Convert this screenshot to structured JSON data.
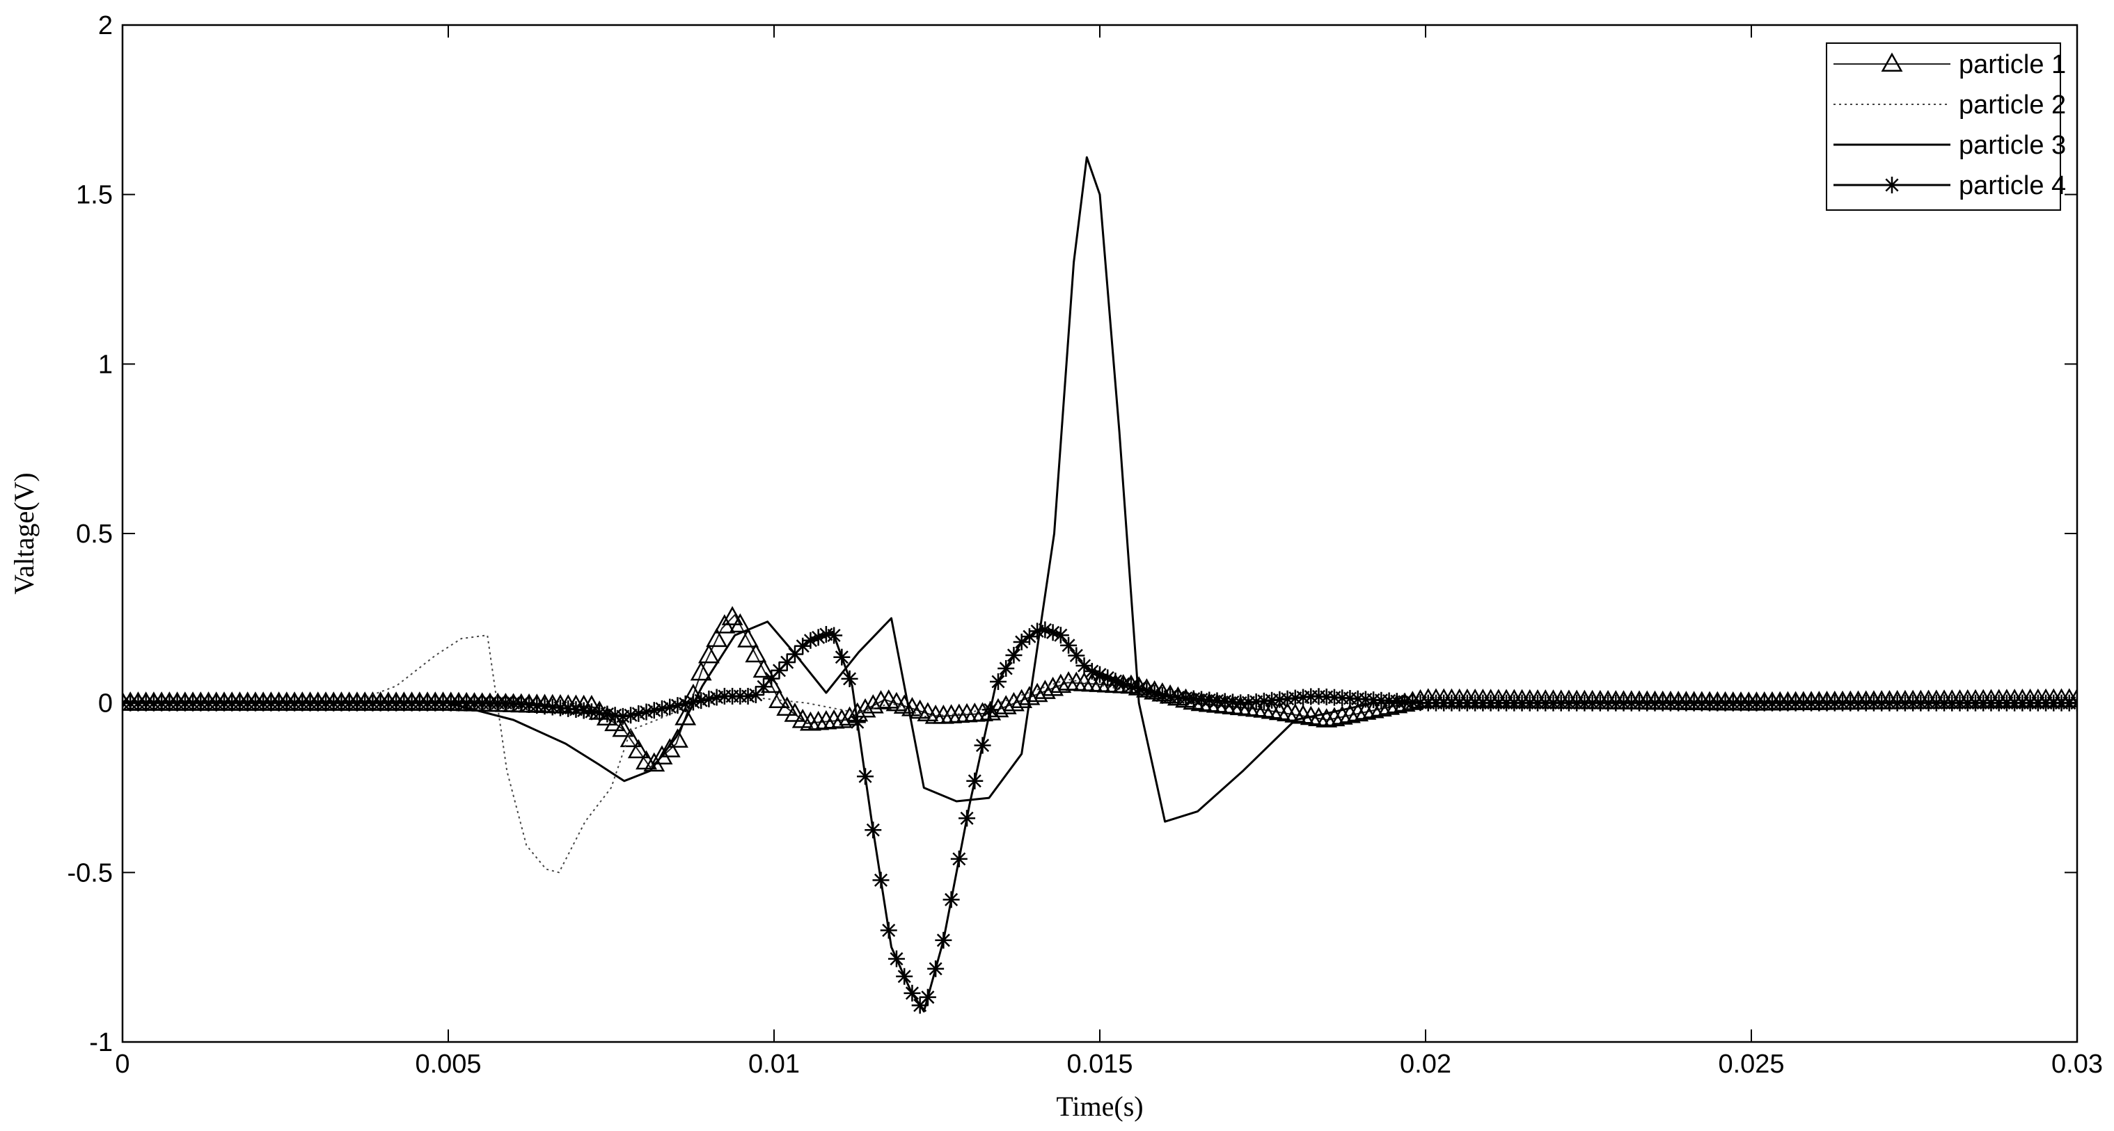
{
  "chart_data": {
    "type": "line",
    "title": "",
    "xlabel": "Time(s)",
    "ylabel": "Valtage(V)",
    "xlim": [
      0,
      0.03
    ],
    "ylim": [
      -1,
      2
    ],
    "grid": false,
    "legend_position": "top-right",
    "x_ticks": [
      0,
      0.005,
      0.01,
      0.015,
      0.02,
      0.025,
      0.03
    ],
    "x_tick_labels": [
      "0",
      "0.005",
      "0.01",
      "0.015",
      "0.02",
      "0.025",
      "0.03"
    ],
    "y_ticks": [
      -1,
      -0.5,
      0,
      0.5,
      1,
      1.5,
      2
    ],
    "y_tick_labels": [
      "-1",
      "-0.5",
      "0",
      "0.5",
      "1",
      "1.5",
      "2"
    ],
    "series": [
      {
        "name": "particle 1",
        "line": "solid-thin",
        "marker": "triangle",
        "x": [
          0,
          0.005,
          0.0072,
          0.0077,
          0.0081,
          0.0085,
          0.0089,
          0.0092,
          0.0094,
          0.0097,
          0.0101,
          0.0105,
          0.0111,
          0.0117,
          0.0125,
          0.0133,
          0.0145,
          0.0155,
          0.0165,
          0.0175,
          0.0185,
          0.0195,
          0.02,
          0.025,
          0.03
        ],
        "y": [
          0,
          0,
          -0.01,
          -0.08,
          -0.19,
          -0.12,
          0.1,
          0.22,
          0.26,
          0.15,
          0.0,
          -0.06,
          -0.05,
          0.01,
          -0.04,
          -0.03,
          0.06,
          0.05,
          0.0,
          -0.02,
          -0.05,
          -0.01,
          0.01,
          0.0,
          0.01
        ]
      },
      {
        "name": "particle 2",
        "line": "dotted",
        "marker": "none",
        "x": [
          0,
          0.0035,
          0.0042,
          0.0048,
          0.0052,
          0.0056,
          0.0059,
          0.0062,
          0.0065,
          0.0067,
          0.0071,
          0.0075,
          0.0078,
          0.0082,
          0.0088,
          0.0095,
          0.0105,
          0.0113,
          0.0118,
          0.0123,
          0.013,
          0.0145,
          0.0165,
          0.02,
          0.025,
          0.03
        ],
        "y": [
          0,
          0,
          0.05,
          0.14,
          0.19,
          0.2,
          -0.2,
          -0.42,
          -0.49,
          -0.5,
          -0.35,
          -0.25,
          -0.08,
          -0.05,
          0.0,
          0.02,
          0.0,
          -0.03,
          0.0,
          -0.04,
          -0.03,
          0.07,
          0.0,
          0.0,
          0.0,
          0.0
        ]
      },
      {
        "name": "particle 3",
        "line": "solid",
        "marker": "none",
        "x": [
          0,
          0.005,
          0.006,
          0.0068,
          0.0073,
          0.0077,
          0.0081,
          0.0085,
          0.0089,
          0.0094,
          0.0099,
          0.0103,
          0.0108,
          0.0113,
          0.0118,
          0.0123,
          0.0128,
          0.0133,
          0.0138,
          0.0143,
          0.0146,
          0.0148,
          0.015,
          0.0153,
          0.0156,
          0.016,
          0.0165,
          0.0172,
          0.018,
          0.0185,
          0.0192,
          0.02,
          0.025,
          0.03
        ],
        "y": [
          0,
          0.0,
          -0.05,
          -0.12,
          -0.18,
          -0.23,
          -0.2,
          -0.1,
          0.05,
          0.2,
          0.24,
          0.15,
          0.03,
          0.15,
          0.25,
          -0.25,
          -0.29,
          -0.28,
          -0.15,
          0.5,
          1.3,
          1.61,
          1.5,
          0.8,
          0.0,
          -0.35,
          -0.32,
          -0.2,
          -0.05,
          -0.03,
          0.0,
          0.0,
          0.0,
          0.0
        ]
      },
      {
        "name": "particle 4",
        "line": "solid",
        "marker": "star",
        "x": [
          0,
          0.006,
          0.007,
          0.0077,
          0.0082,
          0.0087,
          0.0092,
          0.0097,
          0.0101,
          0.0105,
          0.0109,
          0.0112,
          0.0115,
          0.0118,
          0.0121,
          0.0123,
          0.0126,
          0.013,
          0.0134,
          0.0138,
          0.0141,
          0.0144,
          0.0148,
          0.0153,
          0.016,
          0.0172,
          0.0183,
          0.02,
          0.025,
          0.03
        ],
        "y": [
          0,
          0,
          -0.02,
          -0.04,
          -0.02,
          0.0,
          0.02,
          0.02,
          0.1,
          0.18,
          0.21,
          0.05,
          -0.35,
          -0.72,
          -0.85,
          -0.91,
          -0.7,
          -0.3,
          0.05,
          0.18,
          0.22,
          0.2,
          0.1,
          0.06,
          0.02,
          0.0,
          0.02,
          0.0,
          0.0,
          0.0
        ]
      }
    ]
  }
}
